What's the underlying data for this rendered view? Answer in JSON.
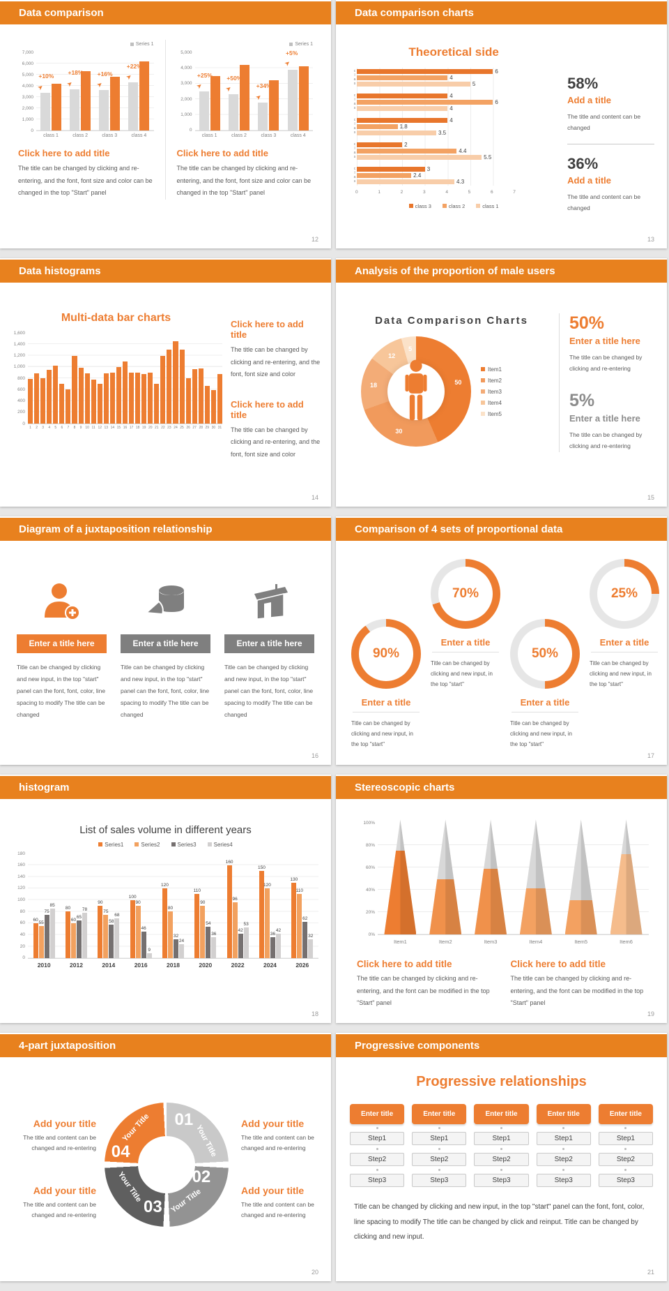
{
  "colors": {
    "accent": "#ED7D31",
    "header": "#E8811E",
    "gray_bar": "#D9D9D9",
    "text_dark": "#404040",
    "text_gray": "#595959"
  },
  "slides": [
    {
      "header": "Data comparison",
      "page": "12",
      "panels": [
        {
          "title": "Click here to add title",
          "body": "The title can be changed by clicking and re-entering, and the font, font size and color can be changed in the top \"Start\" panel"
        },
        {
          "title": "Click here to add title",
          "body": "The title can be changed by clicking and re-entering, and the font, font size and color can be changed in the top \"Start\" panel"
        }
      ]
    },
    {
      "header": "Data comparison charts",
      "page": "13",
      "stats": [
        {
          "pct": "58%",
          "title": "Add a title",
          "body": "The title and content can be changed"
        },
        {
          "pct": "36%",
          "title": "Add a title",
          "body": "The title and content can be changed"
        }
      ]
    },
    {
      "header": "Data histograms",
      "page": "14",
      "blocks": [
        {
          "title": "Click here to add title",
          "body": "The title can be changed by clicking and re-entering, and the font, font size and color"
        },
        {
          "title": "Click here to add title",
          "body": "The title can be changed by clicking and re-entering, and the font, font size and color"
        }
      ]
    },
    {
      "header": "Analysis of the proportion of male users",
      "page": "15",
      "stats": [
        {
          "pct": "50%",
          "title": "Enter a title here",
          "body": "The title can be changed by clicking and re-entering"
        },
        {
          "pct": "5%",
          "title": "Enter a title here",
          "body": "The title can be changed by clicking and re-entering"
        }
      ]
    },
    {
      "header": "Diagram of a juxtaposition relationship",
      "page": "16",
      "items": [
        {
          "icon": "person-add-icon",
          "title": "Enter a title here",
          "body": "Title can be changed by clicking and new input, in the top \"start\" panel can the font, font, color, line spacing to modify The title can be changed"
        },
        {
          "icon": "database-pie-icon",
          "title": "Enter a title here",
          "body": "Title can be changed by clicking and new input, in the top \"start\" panel can the font, font, color, line spacing to modify The title can be changed"
        },
        {
          "icon": "building-icon",
          "title": "Enter a title here",
          "body": "Title can be changed by clicking and new input, in the top \"start\" panel can the font, font, color, line spacing to modify The title can be changed"
        }
      ]
    },
    {
      "header": "Comparison of 4 sets of proportional data",
      "page": "17",
      "rings": [
        {
          "pct": "90%",
          "title": "Enter a title",
          "body": "Title can be changed by clicking and new input, in the top \"start\""
        },
        {
          "pct": "70%",
          "title": "Enter a title",
          "body": "Title can be changed by clicking and new input, in the top \"start\""
        },
        {
          "pct": "50%",
          "title": "Enter a title",
          "body": "Title can be changed by clicking and new input, in the top \"start\""
        },
        {
          "pct": "25%",
          "title": "Enter a title",
          "body": "Title can be changed by clicking and new input, in the top \"start\""
        }
      ]
    },
    {
      "header": "histogram",
      "page": "18"
    },
    {
      "header": "Stereoscopic charts",
      "page": "19",
      "blocks": [
        {
          "title": "Click here to add title",
          "body": "The title can be changed by clicking and re-entering, and the font can be modified in the top \"Start\" panel"
        },
        {
          "title": "Click here to add title",
          "body": "The title can be changed by clicking and re-entering, and the font can be modified in the top \"Start\" panel"
        }
      ]
    },
    {
      "header": "4-part juxtaposition",
      "page": "20",
      "callouts": [
        {
          "title": "Add your title",
          "body": "The title and content can be changed and re-entering"
        },
        {
          "title": "Add your title",
          "body": "The title and content can be changed and re-entering"
        },
        {
          "title": "Add your title",
          "body": "The title and content can be changed and re-entering"
        },
        {
          "title": "Add your title",
          "body": "The title and content can be changed and re-entering"
        }
      ]
    },
    {
      "header": "Progressive components",
      "page": "21",
      "title": "Progressive relationships",
      "columns": 5,
      "column_title": "Enter title",
      "steps": [
        "Step1",
        "Step2",
        "Step3"
      ],
      "footer": "Title can be changed by clicking and new input, in the top \"start\" panel can the font, font, color, line spacing to modify The title can be changed by click and reinput. Title can be changed by clicking and new input."
    }
  ],
  "chart_data": [
    {
      "type": "bar",
      "id": "class-growth-left",
      "categories": [
        "class 1",
        "class 2",
        "class 3",
        "class 4"
      ],
      "series": [
        {
          "name": "base",
          "color": "#D9D9D9",
          "values": [
            3400,
            3700,
            3600,
            4300
          ]
        },
        {
          "name": "Series 1",
          "color": "#ED7D31",
          "values": [
            4200,
            5300,
            4800,
            6200
          ]
        }
      ],
      "growth_labels": [
        "+10%",
        "+18%",
        "+16%",
        "+22%"
      ],
      "ylim": [
        0,
        7000
      ],
      "yticks": [
        "7,000",
        "6,000",
        "5,000",
        "4,000",
        "3,000",
        "2,000",
        "1,000",
        "0"
      ],
      "legend": [
        "Series 1"
      ]
    },
    {
      "type": "bar",
      "id": "class-growth-right",
      "categories": [
        "class 1",
        "class 2",
        "class 3",
        "class 4"
      ],
      "series": [
        {
          "name": "base",
          "color": "#D9D9D9",
          "values": [
            2500,
            2300,
            1800,
            3900
          ]
        },
        {
          "name": "Series 1",
          "color": "#ED7D31",
          "values": [
            3500,
            4200,
            3200,
            4100
          ]
        }
      ],
      "growth_labels": [
        "+25%",
        "+50%",
        "+34%",
        "+5%"
      ],
      "ylim": [
        0,
        5000
      ],
      "yticks": [
        "5,000",
        "4,000",
        "3,000",
        "2,000",
        "1,000",
        "0"
      ],
      "legend": [
        "Series 1"
      ]
    },
    {
      "type": "bar-horizontal",
      "id": "theoretical-side",
      "title": "Theoretical side",
      "group_label": "clas…",
      "groups": 5,
      "series": [
        {
          "name": "class 3",
          "color": "#E8762C",
          "values": [
            6,
            4,
            4,
            2,
            3
          ]
        },
        {
          "name": "class 2",
          "color": "#F3A263",
          "values": [
            4,
            6,
            1.8,
            4.4,
            2.4
          ]
        },
        {
          "name": "class 1",
          "color": "#F8CDA9",
          "values": [
            5,
            4,
            3.5,
            5.5,
            4.3
          ]
        }
      ],
      "xlim": [
        0,
        7
      ],
      "xticks": [
        "0",
        "1",
        "2",
        "3",
        "4",
        "5",
        "6",
        "7"
      ]
    },
    {
      "type": "bar",
      "id": "multi-data-bar",
      "title": "Multi-data bar charts",
      "color": "#ED7D31",
      "x": [
        "1",
        "2",
        "3",
        "4",
        "5",
        "6",
        "7",
        "8",
        "9",
        "10",
        "11",
        "12",
        "13",
        "14",
        "15",
        "16",
        "17",
        "18",
        "19",
        "20",
        "21",
        "22",
        "23",
        "24",
        "25",
        "26",
        "27",
        "28",
        "29",
        "30",
        "31"
      ],
      "values": [
        790,
        890,
        800,
        950,
        1020,
        700,
        600,
        1200,
        980,
        890,
        780,
        700,
        890,
        900,
        1000,
        1100,
        900,
        900,
        880,
        900,
        700,
        1200,
        1300,
        1450,
        1300,
        800,
        960,
        970,
        660,
        590,
        870
      ],
      "ylim": [
        0,
        1600
      ],
      "yticks": [
        "1,600",
        "1,400",
        "1,200",
        "1,000",
        "800",
        "600",
        "400",
        "200",
        "0"
      ]
    },
    {
      "type": "pie",
      "id": "male-users-donut",
      "title": "Data Comparison Charts",
      "slices": [
        {
          "name": "Item1",
          "value": 50,
          "color": "#ED7D31"
        },
        {
          "name": "Item2",
          "value": 30,
          "color": "#F19A5C"
        },
        {
          "name": "Item3",
          "value": 18,
          "color": "#F3AC77"
        },
        {
          "name": "Item4",
          "value": 12,
          "color": "#F7C69A"
        },
        {
          "name": "Item5",
          "value": 5,
          "color": "#FBE2C9"
        }
      ]
    },
    {
      "type": "donut-gauges",
      "id": "proportional-rings",
      "values": [
        90,
        70,
        50,
        25
      ],
      "color": "#ED7D31",
      "track": "#E6E6E6"
    },
    {
      "type": "bar",
      "id": "sales-volume",
      "title": "List of sales volume in different years",
      "categories": [
        "2010",
        "2012",
        "2014",
        "2016",
        "2018",
        "2020",
        "2022",
        "2024",
        "2026"
      ],
      "series": [
        {
          "name": "Series1",
          "color": "#ED7D31",
          "values": [
            60,
            80,
            90,
            100,
            120,
            110,
            160,
            150,
            130
          ]
        },
        {
          "name": "Series2",
          "color": "#F2A15F",
          "values": [
            55,
            60,
            75,
            90,
            80,
            90,
            96,
            120,
            110
          ]
        },
        {
          "name": "Series3",
          "color": "#757070",
          "values": [
            75,
            65,
            58,
            46,
            32,
            54,
            42,
            36,
            62
          ]
        },
        {
          "name": "Series4",
          "color": "#D2D0D0",
          "values": [
            85,
            78,
            68,
            9,
            24,
            36,
            53,
            42,
            32
          ]
        }
      ],
      "ylim": [
        0,
        180
      ],
      "yticks": [
        "180",
        "160",
        "140",
        "120",
        "100",
        "80",
        "60",
        "40",
        "20",
        "0"
      ]
    },
    {
      "type": "cone",
      "id": "stereoscopic-cones",
      "categories": [
        "Item1",
        "Item2",
        "Item3",
        "Item4",
        "Item5",
        "Item6"
      ],
      "values": [
        73,
        48,
        57,
        40,
        30,
        70
      ],
      "fill_colors": [
        "#ED7D31",
        "#F0914B",
        "#F0914B",
        "#F3A161",
        "#F3A161",
        "#F5BC8C"
      ],
      "yticks": [
        "100%",
        "80%",
        "60%",
        "40%",
        "20%",
        "0%"
      ]
    },
    {
      "type": "pie",
      "id": "four-part-ring",
      "slices": [
        {
          "num": "01",
          "label": "Your Title",
          "color": "#C9C9C9"
        },
        {
          "num": "02",
          "label": "Your Title",
          "color": "#939393"
        },
        {
          "num": "03",
          "label": "Your Title",
          "color": "#5F5F5F"
        },
        {
          "num": "04",
          "label": "Your Title",
          "color": "#ED7D31"
        }
      ]
    }
  ]
}
